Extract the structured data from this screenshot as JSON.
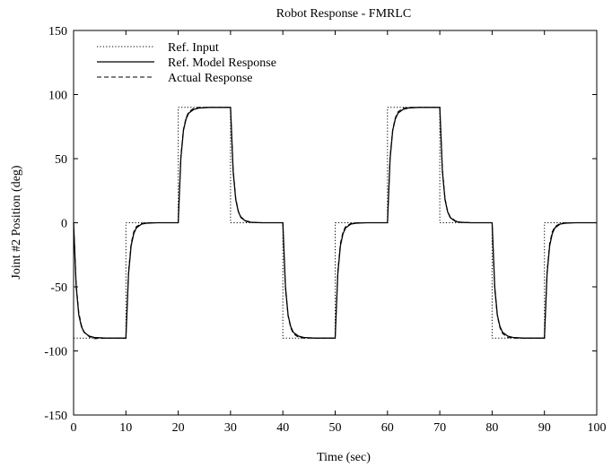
{
  "chart_data": {
    "type": "line",
    "title": "Robot Response - FMRLC",
    "xlabel": "Time (sec)",
    "ylabel": "Joint #2 Position (deg)",
    "xlim": [
      0,
      100
    ],
    "ylim": [
      -150,
      150
    ],
    "xticks": [
      0,
      10,
      20,
      30,
      40,
      50,
      60,
      70,
      80,
      90,
      100
    ],
    "yticks": [
      -150,
      -100,
      -50,
      0,
      50,
      100,
      150
    ],
    "grid": false,
    "legend_position": "top-left",
    "series": [
      {
        "name": "Ref. Input",
        "style": "dotted",
        "points": [
          [
            0,
            -90
          ],
          [
            10,
            -90
          ],
          [
            10,
            0
          ],
          [
            20,
            0
          ],
          [
            20,
            90
          ],
          [
            30,
            90
          ],
          [
            30,
            0
          ],
          [
            40,
            0
          ],
          [
            40,
            -90
          ],
          [
            50,
            -90
          ],
          [
            50,
            0
          ],
          [
            60,
            0
          ],
          [
            60,
            90
          ],
          [
            70,
            90
          ],
          [
            70,
            0
          ],
          [
            80,
            0
          ],
          [
            80,
            -90
          ],
          [
            90,
            -90
          ],
          [
            90,
            0
          ],
          [
            100,
            0
          ]
        ]
      },
      {
        "name": "Ref. Model Response",
        "style": "solid",
        "points": [
          [
            0,
            0
          ],
          [
            0.5,
            -50
          ],
          [
            1,
            -72
          ],
          [
            1.5,
            -81
          ],
          [
            2,
            -85.5
          ],
          [
            3,
            -88.5
          ],
          [
            4,
            -89.5
          ],
          [
            6,
            -90
          ],
          [
            10,
            -90
          ],
          [
            10.5,
            -40
          ],
          [
            11,
            -18
          ],
          [
            11.5,
            -8.5
          ],
          [
            12,
            -4
          ],
          [
            13,
            -1
          ],
          [
            14,
            -0.3
          ],
          [
            16,
            0
          ],
          [
            20,
            0
          ],
          [
            20.5,
            50
          ],
          [
            21,
            72
          ],
          [
            21.5,
            81
          ],
          [
            22,
            85.5
          ],
          [
            23,
            88.5
          ],
          [
            24,
            89.5
          ],
          [
            26,
            90
          ],
          [
            30,
            90
          ],
          [
            30.5,
            40
          ],
          [
            31,
            18
          ],
          [
            31.5,
            8.5
          ],
          [
            32,
            4
          ],
          [
            33,
            1
          ],
          [
            34,
            0.3
          ],
          [
            36,
            0
          ],
          [
            40,
            0
          ],
          [
            40.5,
            -50
          ],
          [
            41,
            -72
          ],
          [
            41.5,
            -81
          ],
          [
            42,
            -85.5
          ],
          [
            43,
            -88.5
          ],
          [
            44,
            -89.5
          ],
          [
            46,
            -90
          ],
          [
            50,
            -90
          ],
          [
            50.5,
            -40
          ],
          [
            51,
            -18
          ],
          [
            51.5,
            -8.5
          ],
          [
            52,
            -4
          ],
          [
            53,
            -1
          ],
          [
            54,
            -0.3
          ],
          [
            56,
            0
          ],
          [
            60,
            0
          ],
          [
            60.5,
            50
          ],
          [
            61,
            72
          ],
          [
            61.5,
            81
          ],
          [
            62,
            85.5
          ],
          [
            63,
            88.5
          ],
          [
            64,
            89.5
          ],
          [
            66,
            90
          ],
          [
            70,
            90
          ],
          [
            70.5,
            40
          ],
          [
            71,
            18
          ],
          [
            71.5,
            8.5
          ],
          [
            72,
            4
          ],
          [
            73,
            1
          ],
          [
            74,
            0.3
          ],
          [
            76,
            0
          ],
          [
            80,
            0
          ],
          [
            80.5,
            -50
          ],
          [
            81,
            -72
          ],
          [
            81.5,
            -81
          ],
          [
            82,
            -85.5
          ],
          [
            83,
            -88.5
          ],
          [
            84,
            -89.5
          ],
          [
            86,
            -90
          ],
          [
            90,
            -90
          ],
          [
            90.5,
            -40
          ],
          [
            91,
            -18
          ],
          [
            91.5,
            -8.5
          ],
          [
            92,
            -4
          ],
          [
            93,
            -1
          ],
          [
            94,
            -0.3
          ],
          [
            96,
            0
          ],
          [
            100,
            0
          ]
        ]
      },
      {
        "name": "Actual Response",
        "style": "dashed",
        "points": [
          [
            0,
            0
          ],
          [
            0.5,
            -48
          ],
          [
            1,
            -70
          ],
          [
            1.5,
            -80
          ],
          [
            2,
            -85
          ],
          [
            3,
            -89
          ],
          [
            4,
            -90.5
          ],
          [
            6,
            -90
          ],
          [
            10,
            -90
          ],
          [
            10.5,
            -38
          ],
          [
            11,
            -16
          ],
          [
            11.5,
            -7
          ],
          [
            12,
            -3
          ],
          [
            13,
            -0.5
          ],
          [
            14,
            0
          ],
          [
            16,
            0
          ],
          [
            20,
            0
          ],
          [
            20.5,
            52
          ],
          [
            21,
            73
          ],
          [
            21.5,
            82
          ],
          [
            22,
            86.5
          ],
          [
            23,
            89.5
          ],
          [
            24,
            90
          ],
          [
            26,
            90
          ],
          [
            30,
            90
          ],
          [
            30.5,
            42
          ],
          [
            31,
            19
          ],
          [
            31.5,
            9
          ],
          [
            32,
            4.5
          ],
          [
            33,
            1.5
          ],
          [
            34,
            0.5
          ],
          [
            36,
            0
          ],
          [
            40,
            0
          ],
          [
            40.5,
            -52
          ],
          [
            41,
            -73
          ],
          [
            41.5,
            -82
          ],
          [
            42,
            -86.5
          ],
          [
            43,
            -89.5
          ],
          [
            44,
            -90
          ],
          [
            46,
            -90
          ],
          [
            50,
            -90
          ],
          [
            50.5,
            -38
          ],
          [
            51,
            -16
          ],
          [
            51.5,
            -7
          ],
          [
            52,
            -3
          ],
          [
            53,
            -0.5
          ],
          [
            54,
            0
          ],
          [
            56,
            0
          ],
          [
            60,
            0
          ],
          [
            60.5,
            52
          ],
          [
            61,
            73
          ],
          [
            61.5,
            82
          ],
          [
            62,
            86.5
          ],
          [
            63,
            89.5
          ],
          [
            64,
            90
          ],
          [
            66,
            90
          ],
          [
            70,
            90
          ],
          [
            70.5,
            42
          ],
          [
            71,
            19
          ],
          [
            71.5,
            9
          ],
          [
            72,
            4.5
          ],
          [
            73,
            1.5
          ],
          [
            74,
            0.5
          ],
          [
            76,
            0
          ],
          [
            80,
            0
          ],
          [
            80.5,
            -52
          ],
          [
            81,
            -73
          ],
          [
            81.5,
            -82
          ],
          [
            82,
            -86.5
          ],
          [
            83,
            -89.5
          ],
          [
            84,
            -90
          ],
          [
            86,
            -90
          ],
          [
            90,
            -90
          ],
          [
            90.5,
            -38
          ],
          [
            91,
            -16
          ],
          [
            91.5,
            -7
          ],
          [
            92,
            -3
          ],
          [
            93,
            -0.5
          ],
          [
            94,
            0
          ],
          [
            96,
            0
          ],
          [
            100,
            0
          ]
        ]
      }
    ]
  }
}
